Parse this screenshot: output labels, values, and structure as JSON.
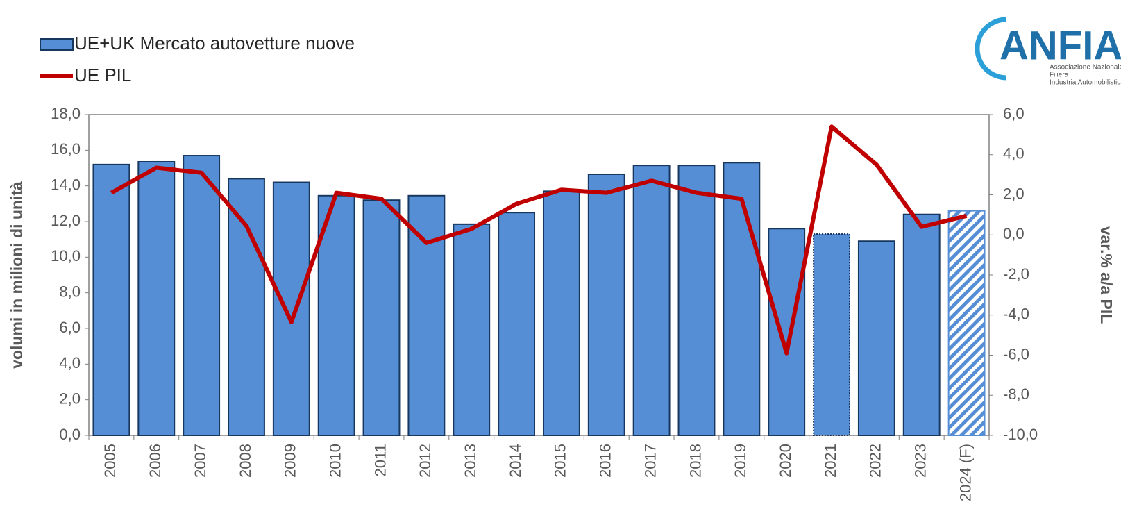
{
  "chart_data": {
    "type": "bar_line",
    "logo": {
      "title": "ANFIA",
      "subtitle": [
        "Associazione Nazionale",
        "Filiera",
        "Industria Automobilistica"
      ]
    },
    "ylabel": "volumi in milioni di unità",
    "y2label": "var.% a/a PIL",
    "categories": [
      "2005",
      "2006",
      "2007",
      "2008",
      "2009",
      "2010",
      "2011",
      "2012",
      "2013",
      "2014",
      "2015",
      "2016",
      "2017",
      "2018",
      "2019",
      "2020",
      "2021",
      "2022",
      "2023",
      "2024 (F)"
    ],
    "series": [
      {
        "name": "UE+UK Mercato autovetture nuove",
        "type": "bar",
        "color": "#558ed5",
        "styles": [
          "solid",
          "solid",
          "solid",
          "solid",
          "solid",
          "solid",
          "solid",
          "solid",
          "solid",
          "solid",
          "solid",
          "solid",
          "solid",
          "solid",
          "solid",
          "solid",
          "dotted",
          "solid",
          "solid",
          "hatched"
        ],
        "values": [
          15.2,
          15.35,
          15.7,
          14.4,
          14.2,
          13.45,
          13.2,
          13.45,
          11.85,
          12.5,
          13.7,
          14.65,
          15.15,
          15.15,
          15.3,
          11.6,
          11.3,
          10.9,
          12.4,
          12.6
        ]
      },
      {
        "name": "UE PIL",
        "type": "line",
        "color": "#c00000",
        "axis": "y2",
        "values": [
          2.1,
          3.35,
          3.1,
          0.45,
          -4.35,
          2.1,
          1.8,
          -0.4,
          0.3,
          1.55,
          2.25,
          2.1,
          2.7,
          2.1,
          1.8,
          -5.9,
          5.4,
          3.5,
          0.4,
          0.95
        ]
      }
    ],
    "ylim": [
      0,
      18
    ],
    "yticks": [
      {
        "value": 0,
        "label": "0,0"
      },
      {
        "value": 2,
        "label": "2,0"
      },
      {
        "value": 4,
        "label": "4,0"
      },
      {
        "value": 6,
        "label": "6,0"
      },
      {
        "value": 8,
        "label": "8,0"
      },
      {
        "value": 10,
        "label": "10,0"
      },
      {
        "value": 12,
        "label": "12,0"
      },
      {
        "value": 14,
        "label": "14,0"
      },
      {
        "value": 16,
        "label": "16,0"
      },
      {
        "value": 18,
        "label": "18,0"
      }
    ],
    "y2lim": [
      -10,
      6
    ],
    "y2ticks": [
      {
        "value": -10,
        "label": "-10,0"
      },
      {
        "value": -8,
        "label": "-8,0"
      },
      {
        "value": -6,
        "label": "-6,0"
      },
      {
        "value": -4,
        "label": "-4,0"
      },
      {
        "value": -2,
        "label": "-2,0"
      },
      {
        "value": 0,
        "label": "0,0"
      },
      {
        "value": 2,
        "label": "2,0"
      },
      {
        "value": 4,
        "label": "4,0"
      },
      {
        "value": 6,
        "label": "6,0"
      }
    ],
    "grid": false,
    "legend": "top-left"
  }
}
